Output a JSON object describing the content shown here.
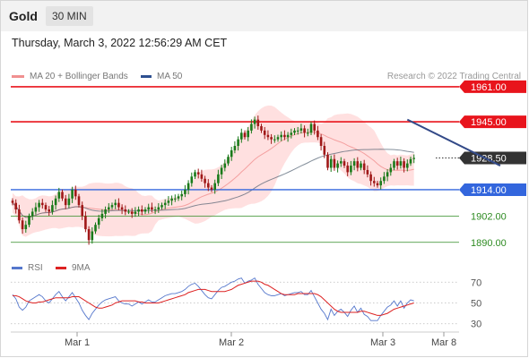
{
  "header": {
    "symbol": "Gold",
    "timeframe": "30 MIN"
  },
  "datetime": "Thursday, March 3, 2022 12:56:29 AM CET",
  "credit": "Research © 2022 Trading Central",
  "colors": {
    "red": "#e8141c",
    "blue": "#3366dd",
    "green": "#2e8b22",
    "current": "#333333",
    "candle_up": "#1a7a1a",
    "candle_down": "#a01818",
    "band": "#ffd6d6",
    "ma20": "#f4a0a0",
    "ma50": "#506070",
    "trend": "#334a88",
    "arrow": "#1f5fb0",
    "rsi": "#5577cc",
    "rsi_ma": "#dd2222"
  },
  "chart_data": [
    {
      "type": "candlestick",
      "title": "",
      "legend": [
        {
          "name": "MA 20 + Bollinger Bands",
          "color": "#f09090"
        },
        {
          "name": "MA 50",
          "color": "#2e5090"
        }
      ],
      "legend_position": "top-left",
      "ylim": [
        1885,
        1963
      ],
      "x_ticks": [
        "Mar 1",
        "Mar 2",
        "Mar 3",
        "Mar 8"
      ],
      "levels": [
        {
          "value": 1961.0,
          "label": "1961.00",
          "kind": "resistance"
        },
        {
          "value": 1945.0,
          "label": "1945.00",
          "kind": "resistance"
        },
        {
          "value": 1928.5,
          "label": "1928.50",
          "kind": "current"
        },
        {
          "value": 1914.0,
          "label": "1914.00",
          "kind": "pivot"
        },
        {
          "value": 1902.0,
          "label": "1902.00",
          "kind": "support"
        },
        {
          "value": 1890.0,
          "label": "1890.00",
          "kind": "support"
        }
      ],
      "close": [
        1908,
        1905,
        1900,
        1896,
        1898,
        1902,
        1904,
        1906,
        1908,
        1907,
        1905,
        1904,
        1907,
        1910,
        1913,
        1910,
        1907,
        1910,
        1914,
        1911,
        1907,
        1902,
        1896,
        1891,
        1895,
        1898,
        1901,
        1903,
        1905,
        1906,
        1907,
        1908,
        1906,
        1905,
        1904,
        1904,
        1903,
        1904,
        1905,
        1904,
        1905,
        1906,
        1905,
        1905,
        1906,
        1907,
        1908,
        1909,
        1910,
        1910,
        1911,
        1912,
        1914,
        1917,
        1920,
        1922,
        1921,
        1919,
        1917,
        1915,
        1914,
        1917,
        1921,
        1924,
        1926,
        1929,
        1932,
        1934,
        1937,
        1940,
        1938,
        1941,
        1944,
        1946,
        1943,
        1941,
        1939,
        1938,
        1937,
        1937,
        1938,
        1939,
        1938,
        1939,
        1940,
        1941,
        1941,
        1942,
        1940,
        1940,
        1944,
        1941,
        1938,
        1934,
        1930,
        1924,
        1928,
        1924,
        1926,
        1927,
        1925,
        1922,
        1925,
        1927,
        1924,
        1926,
        1923,
        1921,
        1918,
        1917,
        1916,
        1918,
        1920,
        1922,
        1924,
        1927,
        1925,
        1927,
        1924,
        1926,
        1928,
        1928.5
      ],
      "trendlines": [
        {
          "from": [
            119,
            1946
          ],
          "to": [
            147,
            1925
          ]
        }
      ],
      "projection": {
        "from": [
          157,
          1928.5
        ],
        "to": [
          167,
          1961
        ]
      }
    },
    {
      "type": "line",
      "title": "",
      "legend": [
        {
          "name": "RSI",
          "color": "#5577cc"
        },
        {
          "name": "9MA",
          "color": "#dd2222"
        }
      ],
      "ylim": [
        22,
        78
      ],
      "y_ticks": [
        70,
        50,
        30
      ],
      "rsi": [
        58,
        54,
        46,
        43,
        46,
        52,
        54,
        56,
        58,
        56,
        52,
        50,
        54,
        58,
        61,
        56,
        52,
        56,
        60,
        55,
        50,
        43,
        38,
        34,
        40,
        44,
        48,
        51,
        53,
        54,
        55,
        56,
        52,
        50,
        49,
        49,
        47,
        49,
        51,
        49,
        51,
        53,
        51,
        51,
        53,
        55,
        57,
        58,
        59,
        59,
        60,
        61,
        63,
        66,
        68,
        69,
        66,
        62,
        58,
        55,
        54,
        58,
        62,
        65,
        66,
        68,
        70,
        71,
        73,
        74,
        69,
        71,
        72,
        74,
        68,
        64,
        60,
        58,
        57,
        57,
        58,
        59,
        57,
        58,
        59,
        60,
        60,
        61,
        58,
        58,
        62,
        56,
        50,
        44,
        40,
        34,
        44,
        38,
        42,
        44,
        41,
        37,
        43,
        47,
        41,
        45,
        39,
        37,
        33,
        33,
        33,
        38,
        42,
        46,
        48,
        52,
        47,
        52,
        45,
        50,
        53,
        52
      ],
      "rsi_9ma": [
        57,
        57,
        56,
        54,
        52,
        51,
        50,
        50,
        51,
        51,
        52,
        53,
        54,
        55,
        55,
        55,
        55,
        55,
        56,
        56,
        56,
        54,
        52,
        50,
        48,
        46,
        45,
        45,
        46,
        47,
        48,
        50,
        51,
        52,
        52,
        52,
        52,
        52,
        51,
        51,
        50,
        50,
        50,
        50,
        50,
        51,
        52,
        53,
        54,
        55,
        56,
        57,
        58,
        60,
        61,
        62,
        63,
        63,
        63,
        62,
        61,
        61,
        61,
        61,
        61,
        62,
        63,
        65,
        67,
        68,
        69,
        70,
        71,
        71,
        71,
        70,
        68,
        67,
        65,
        63,
        61,
        59,
        58,
        58,
        58,
        58,
        59,
        59,
        59,
        59,
        59,
        59,
        58,
        56,
        53,
        50,
        47,
        44,
        42,
        41,
        41,
        41,
        41,
        41,
        41,
        42,
        42,
        41,
        40,
        39,
        38,
        38,
        39,
        40,
        42,
        44,
        45,
        46,
        47,
        48,
        49,
        50
      ]
    }
  ]
}
